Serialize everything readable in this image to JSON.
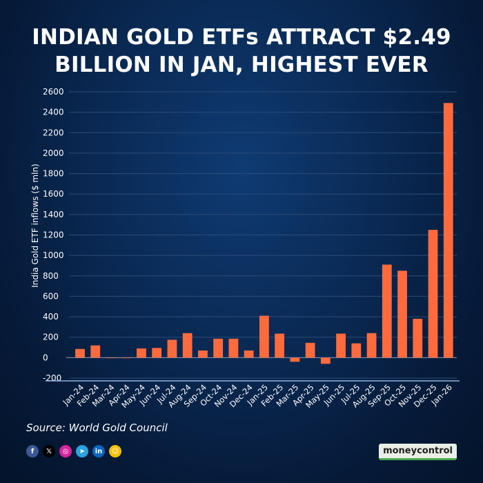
{
  "title_lines": [
    "INDIAN GOLD ETFs ATTRACT $2.49",
    "BILLION IN JAN, HIGHEST EVER"
  ],
  "source": "Source: World Gold Council",
  "brand": "moneycontrol",
  "social": [
    {
      "name": "facebook-icon",
      "glyph": "f",
      "color": "#3b5998"
    },
    {
      "name": "x-icon",
      "glyph": "𝕏",
      "color": "#000000"
    },
    {
      "name": "instagram-icon",
      "glyph": "◎",
      "color": "#d6249f"
    },
    {
      "name": "telegram-icon",
      "glyph": "➤",
      "color": "#2aa3df"
    },
    {
      "name": "linkedin-icon",
      "glyph": "in",
      "color": "#0a66c2"
    },
    {
      "name": "snapchat-icon",
      "glyph": "☺",
      "color": "#f2c200"
    }
  ],
  "colors": {
    "bar": "#ff6a3d",
    "grid": "#2c4c78",
    "zero_line": "#6f87a8",
    "axis": "#8fb3df"
  },
  "chart_data": {
    "type": "bar",
    "title": "INDIAN GOLD ETFs ATTRACT $2.49 BILLION IN JAN, HIGHEST EVER",
    "xlabel": "",
    "ylabel": "India Gold ETF inflows ($ mln)",
    "ylim": [
      -200,
      2600
    ],
    "yticks": [
      -200,
      0,
      200,
      400,
      600,
      800,
      1000,
      1200,
      1400,
      1600,
      1800,
      2000,
      2200,
      2400,
      2600
    ],
    "grid": true,
    "categories": [
      "Jan-24",
      "Feb-24",
      "Mar-24",
      "Apr-24",
      "May-24",
      "Jun-24",
      "Jul-24",
      "Aug-24",
      "Sep-24",
      "Oct-24",
      "Nov-24",
      "Dec-24",
      "Jan-25",
      "Feb-25",
      "Mar-25",
      "Apr-25",
      "May-25",
      "Jun-25",
      "Jul-25",
      "Aug-25",
      "Sep-25",
      "Oct-25",
      "Nov-25",
      "Dec-25",
      "Jan-26"
    ],
    "values": [
      85,
      120,
      -5,
      0,
      90,
      95,
      175,
      240,
      70,
      185,
      185,
      70,
      410,
      235,
      -40,
      145,
      -60,
      235,
      140,
      240,
      910,
      850,
      380,
      1250,
      2490
    ]
  }
}
